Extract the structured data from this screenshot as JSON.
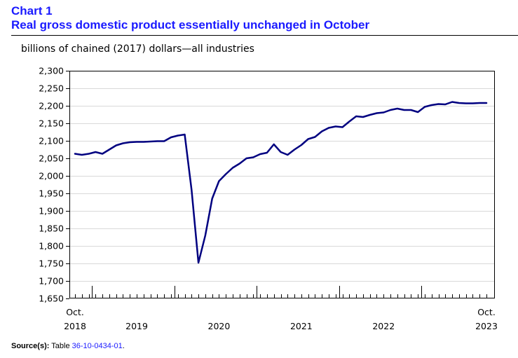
{
  "header": {
    "chart_number": "Chart 1",
    "title": "Real gross domestic product essentially unchanged in October"
  },
  "source": {
    "label": "Source(s):",
    "prefix": "Table ",
    "table_id": "36-10-0434-01",
    "suffix": "."
  },
  "colors": {
    "series": "#000080",
    "title": "#1a1aff"
  },
  "chart_data": {
    "type": "line",
    "title": "Real gross domestic product essentially unchanged in October",
    "ylabel": "billions of chained (2017) dollars—all industries",
    "ylim": [
      1650,
      2300
    ],
    "yticks": [
      1650,
      1700,
      1750,
      1800,
      1850,
      1900,
      1950,
      2000,
      2050,
      2100,
      2150,
      2200,
      2250,
      2300
    ],
    "ytick_labels": [
      "1,650",
      "1,700",
      "1,750",
      "1,800",
      "1,850",
      "1,900",
      "1,950",
      "2,000",
      "2,050",
      "2,100",
      "2,150",
      "2,200",
      "2,250",
      "2,300"
    ],
    "x_start": "2018-10",
    "x_end": "2023-10",
    "x_labels": [
      {
        "month_index": 0,
        "line1": "Oct.",
        "line2": "2018"
      },
      {
        "month_index": 9,
        "line1": "",
        "line2": "2019"
      },
      {
        "month_index": 21,
        "line1": "",
        "line2": "2020"
      },
      {
        "month_index": 33,
        "line1": "",
        "line2": "2021"
      },
      {
        "month_index": 45,
        "line1": "",
        "line2": "2022"
      },
      {
        "month_index": 60,
        "line1": "Oct.",
        "line2": "2023"
      }
    ],
    "year_boundaries": [
      3,
      15,
      27,
      39,
      51
    ],
    "grid": true,
    "series": [
      {
        "name": "All industries",
        "values": [
          2063,
          2060,
          2063,
          2068,
          2063,
          2075,
          2087,
          2093,
          2096,
          2097,
          2097,
          2098,
          2099,
          2099,
          2110,
          2115,
          2118,
          1960,
          1752,
          1830,
          1935,
          1985,
          2005,
          2023,
          2035,
          2050,
          2053,
          2062,
          2066,
          2090,
          2068,
          2060,
          2075,
          2088,
          2105,
          2111,
          2127,
          2137,
          2141,
          2139,
          2155,
          2170,
          2168,
          2174,
          2179,
          2181,
          2188,
          2192,
          2188,
          2188,
          2182,
          2197,
          2202,
          2205,
          2204,
          2211,
          2208,
          2207,
          2207,
          2208,
          2208
        ]
      }
    ]
  }
}
